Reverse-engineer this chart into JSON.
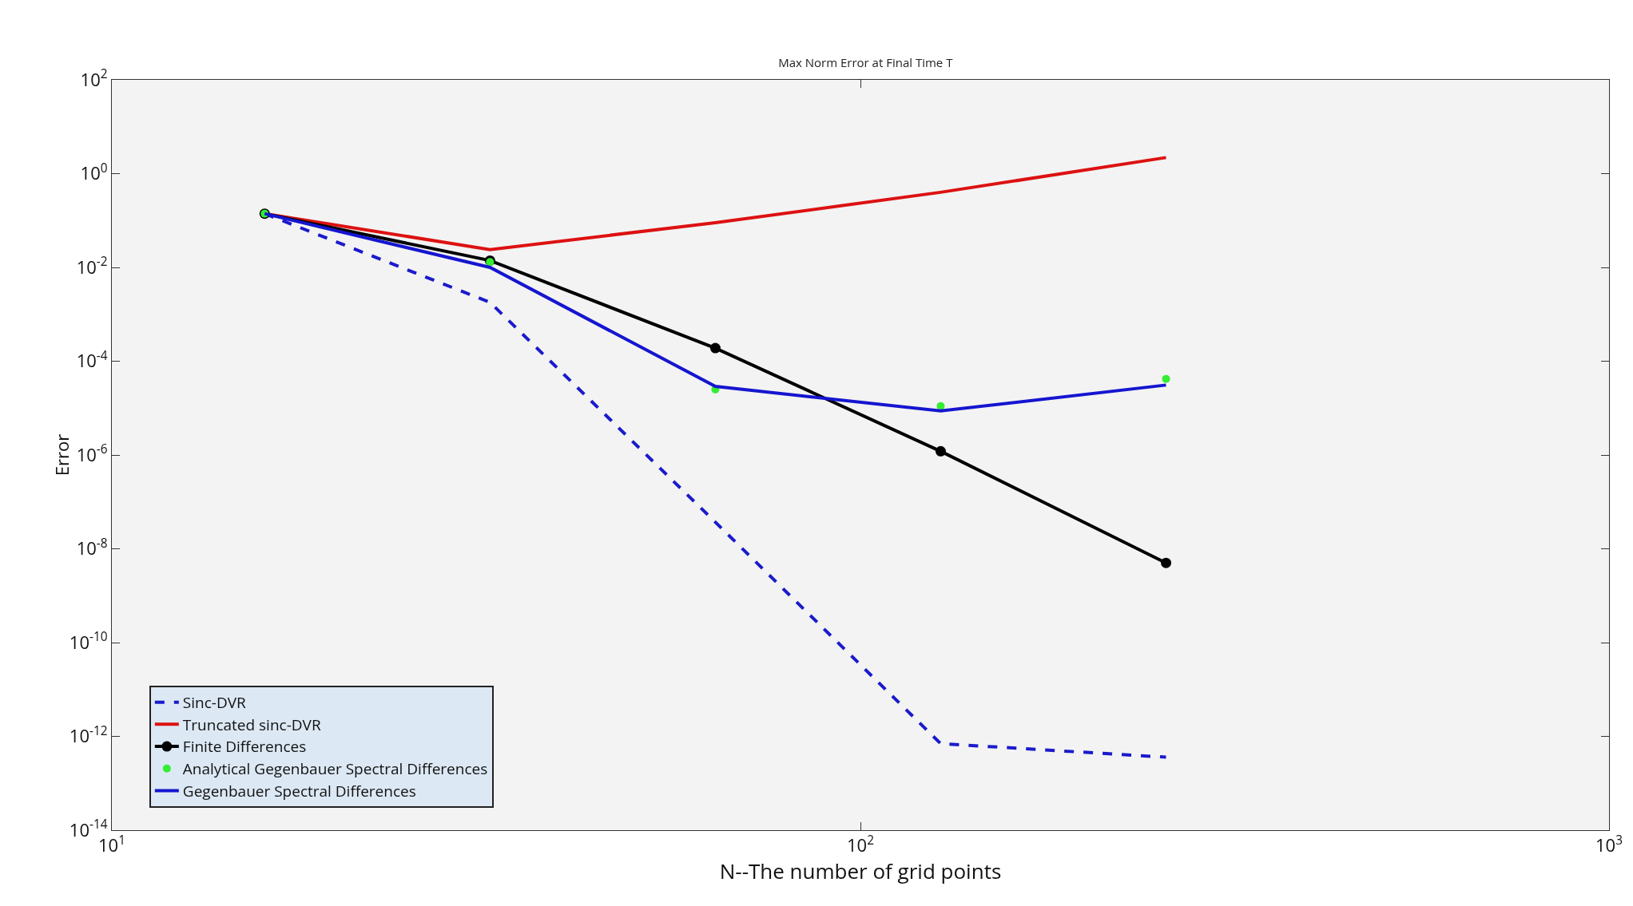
{
  "chart_data": {
    "type": "line",
    "title": "Max Norm Error at Final Time T",
    "xlabel": "N--The number of grid points",
    "ylabel": "Error",
    "log": "xy",
    "grid": false,
    "legend": "bottom left",
    "x": [
      16,
      32,
      64,
      128,
      256
    ],
    "xlim": [
      10,
      1000
    ],
    "xticks": [
      {
        "value": 10,
        "label": "10$^{1}$"
      },
      {
        "value": 100,
        "label": "10$^{2}$"
      },
      {
        "value": 1000,
        "label": "10$^{3}$"
      }
    ],
    "ylim": [
      1e-14,
      100
    ],
    "yticks": [
      {
        "value": 1e-14,
        "label": "10$^{-14}$"
      },
      {
        "value": 1e-12,
        "label": "10$^{-12}$"
      },
      {
        "value": 1e-10,
        "label": "10$^{-10}$"
      },
      {
        "value": 1e-08,
        "label": "10$^{-8}$"
      },
      {
        "value": 1e-06,
        "label": "10$^{-6}$"
      },
      {
        "value": 0.0001,
        "label": "10$^{-4}$"
      },
      {
        "value": 0.01,
        "label": "10$^{-2}$"
      },
      {
        "value": 1,
        "label": "10$^{0}$"
      },
      {
        "value": 100,
        "label": "10$^{2}$"
      }
    ],
    "series": [
      {
        "name": "Sinc-DVR",
        "color": "#1a1acc",
        "line_style": "dashed",
        "marker": "none",
        "values": [
          0.14,
          0.0018,
          3.7e-08,
          7e-13,
          3.6e-13
        ]
      },
      {
        "name": "Truncated sinc-DVR",
        "color": "#dd1111",
        "line_style": "solid",
        "marker": "none",
        "values": [
          0.14,
          0.024,
          0.09,
          0.4,
          2.2
        ]
      },
      {
        "name": "Finite Differences",
        "color": "#000000",
        "line_style": "solid",
        "marker": "circle",
        "values": [
          0.14,
          0.014,
          0.00019,
          1.2e-06,
          5e-09
        ]
      },
      {
        "name": "Analytical Gegenbauer Spectral Differences",
        "color": "#33ee33",
        "type": "scatter",
        "marker": "circle",
        "values": [
          0.14,
          0.013,
          2.5e-05,
          1.1e-05,
          4.2e-05
        ]
      },
      {
        "name": "Gegenbauer Spectral Differences",
        "color": "#1515d0",
        "line_style": "solid",
        "marker": "none",
        "values": [
          0.14,
          0.01,
          2.9e-05,
          8.7e-06,
          3.1e-05
        ]
      }
    ]
  }
}
